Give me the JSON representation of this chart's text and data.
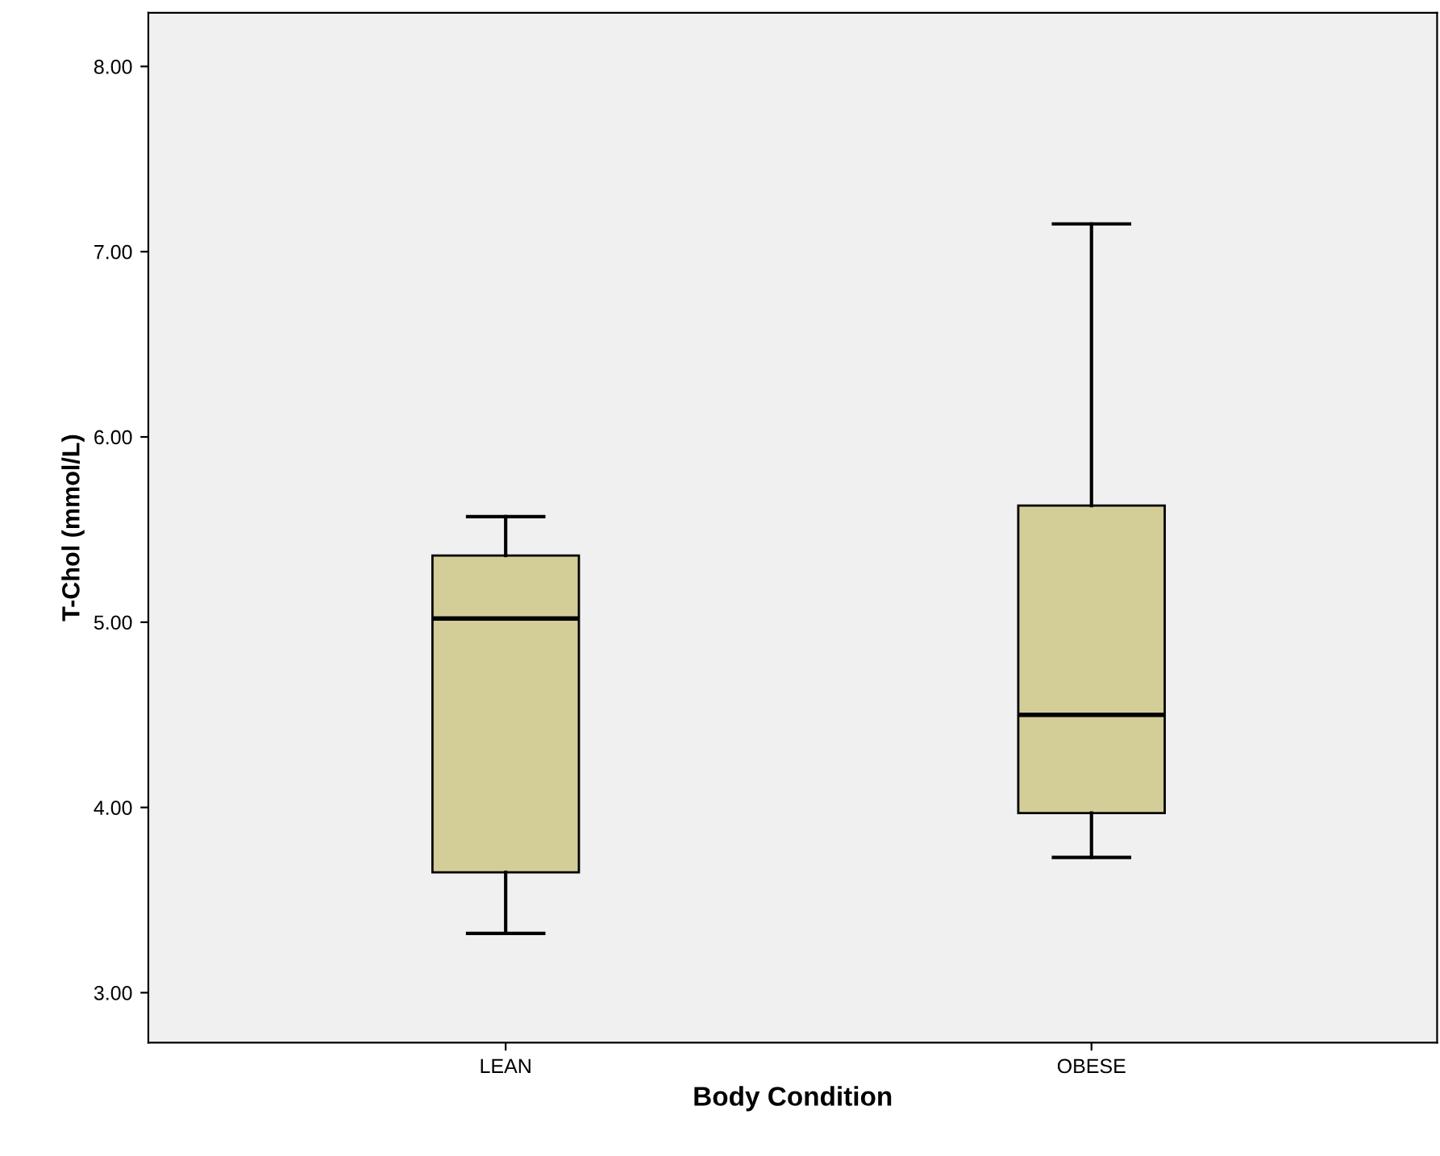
{
  "chart_data": {
    "type": "box",
    "xlabel": "Body Condition",
    "ylabel": "T-Chol (mmol/L)",
    "categories": [
      "LEAN",
      "OBESE"
    ],
    "series": [
      {
        "color": "#d3cd98",
        "boxes": [
          {
            "low": 3.32,
            "q1": 3.65,
            "median": 5.02,
            "q3": 5.36,
            "high": 5.57
          },
          {
            "low": 3.73,
            "q1": 3.97,
            "median": 4.5,
            "q3": 5.63,
            "high": 7.15
          }
        ]
      }
    ],
    "ylim": [
      2.73,
      8.29
    ],
    "yticks": [
      {
        "value": 3,
        "label": "3.00"
      },
      {
        "value": 4,
        "label": "4.00"
      },
      {
        "value": 5,
        "label": "5.00"
      },
      {
        "value": 6,
        "label": "6.00"
      },
      {
        "value": 7,
        "label": "7.00"
      },
      {
        "value": 8,
        "label": "8.00"
      }
    ],
    "grid": false,
    "legend": false
  }
}
